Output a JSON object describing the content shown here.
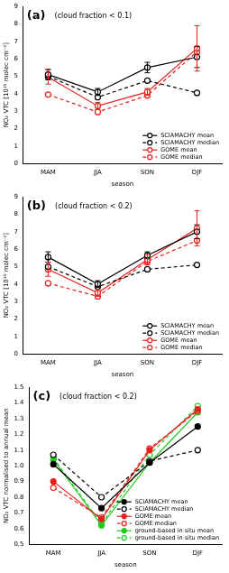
{
  "chart_data": [
    {
      "type": "line",
      "panel_label": "(a)",
      "title": "(cloud fraction < 0.1)",
      "x_label": "season",
      "y_label": "NO₂ VTC [10¹⁵ molec cm⁻²]",
      "categories": [
        "MAM",
        "JJA",
        "SON",
        "DJF"
      ],
      "ylim": [
        0,
        9
      ],
      "yticks": [
        0,
        1,
        2,
        3,
        4,
        5,
        6,
        7,
        8,
        9
      ],
      "grid": false,
      "legend": "lower right",
      "series": [
        {
          "name": "SCIAMACHY mean",
          "color": "#000000",
          "marker": "open_circle",
          "line_style": "solid",
          "values": [
            5.1,
            4.1,
            5.5,
            6.1
          ],
          "error": [
            0.3,
            0.2,
            0.3,
            0.6
          ]
        },
        {
          "name": "SCIAMACHY median",
          "color": "#000000",
          "marker": "open_circle",
          "line_style": "dashed",
          "values": [
            5.0,
            3.8,
            4.75,
            4.05
          ]
        },
        {
          "name": "GOME mean",
          "color": "#e8201c",
          "marker": "open_circle",
          "line_style": "solid",
          "values": [
            4.95,
            3.3,
            4.1,
            6.6
          ],
          "error": [
            0.4,
            0.2,
            0.2,
            1.3
          ]
        },
        {
          "name": "GOME median",
          "color": "#e8201c",
          "marker": "open_circle",
          "line_style": "dashed",
          "values": [
            3.95,
            2.95,
            3.9,
            6.4
          ]
        }
      ]
    },
    {
      "type": "line",
      "panel_label": "(b)",
      "title": "(cloud fraction < 0.2)",
      "x_label": "season",
      "y_label": "NO₂ VTC [10¹⁵ molec cm⁻²]",
      "categories": [
        "MAM",
        "JJA",
        "SON",
        "DJF"
      ],
      "ylim": [
        0,
        9
      ],
      "yticks": [
        0,
        1,
        2,
        3,
        4,
        5,
        6,
        7,
        8,
        9
      ],
      "grid": false,
      "legend": "lower right",
      "series": [
        {
          "name": "SCIAMACHY mean",
          "color": "#000000",
          "marker": "open_circle",
          "line_style": "solid",
          "values": [
            5.55,
            4.0,
            5.65,
            7.0
          ],
          "error": [
            0.3,
            0.2,
            0.2,
            0.4
          ]
        },
        {
          "name": "SCIAMACHY median",
          "color": "#000000",
          "marker": "open_circle",
          "line_style": "dashed",
          "values": [
            5.0,
            3.85,
            4.85,
            5.1
          ]
        },
        {
          "name": "GOME mean",
          "color": "#e8201c",
          "marker": "open_circle",
          "line_style": "solid",
          "values": [
            4.85,
            3.5,
            5.4,
            7.2
          ],
          "error": [
            0.4,
            0.2,
            0.3,
            1.0
          ]
        },
        {
          "name": "GOME median",
          "color": "#e8201c",
          "marker": "open_circle",
          "line_style": "dashed",
          "values": [
            4.05,
            3.3,
            5.3,
            6.5
          ]
        }
      ]
    },
    {
      "type": "line",
      "panel_label": "(c)",
      "title": "(cloud fraction < 0.2)",
      "x_label": "season",
      "y_label": "NO₂ VTC normalised to annual mean",
      "categories": [
        "MAM",
        "JJA",
        "SON",
        "DJF"
      ],
      "ylim": [
        0.5,
        1.5
      ],
      "yticks": [
        0.5,
        0.6,
        0.7,
        0.8,
        0.9,
        {
          "value": 1,
          "label": "1.0"
        },
        1.1,
        1.2,
        1.3,
        1.4,
        1.5
      ],
      "grid": false,
      "legend": "lower right",
      "series": [
        {
          "name": "SCIAMACHY mean",
          "color": "#000000",
          "marker": "filled_circle",
          "line_style": "solid",
          "values": [
            1.01,
            0.73,
            1.02,
            1.25
          ]
        },
        {
          "name": "SCIAMACHY median",
          "color": "#000000",
          "marker": "open_circle",
          "line_style": "dashed",
          "values": [
            1.07,
            0.8,
            1.03,
            1.1
          ]
        },
        {
          "name": "GOME mean",
          "color": "#e8201c",
          "marker": "filled_circle",
          "line_style": "solid",
          "values": [
            0.9,
            0.66,
            1.1,
            1.36
          ]
        },
        {
          "name": "GOME median",
          "color": "#e8201c",
          "marker": "open_circle",
          "line_style": "dashed",
          "values": [
            0.86,
            0.67,
            1.11,
            1.35
          ]
        },
        {
          "name": "ground-based in situ mean",
          "color": "#22cc22",
          "marker": "filled_circle",
          "line_style": "solid",
          "values": [
            1.04,
            0.62,
            1.02,
            1.34
          ]
        },
        {
          "name": "ground-based in situ median",
          "color": "#22cc22",
          "marker": "open_circle",
          "line_style": "dashed",
          "values": [
            1.05,
            0.63,
            1.07,
            1.38
          ]
        }
      ]
    }
  ]
}
